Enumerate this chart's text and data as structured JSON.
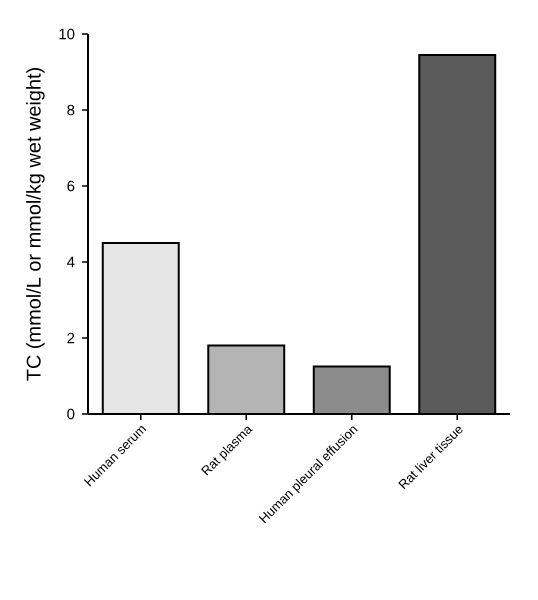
{
  "chart_data": {
    "type": "bar",
    "ylabel": "TC (mmol/L or mmol/kg wet weight)",
    "categories": [
      "Human serum",
      "Rat plasma",
      "Human pleural effusion",
      "Rat liver tissue"
    ],
    "values": [
      4.5,
      1.8,
      1.25,
      9.45
    ],
    "color": "#000000",
    "colors": [
      "#e6e6e6",
      "#b4b4b4",
      "#8c8c8c",
      "#5a5a5a"
    ],
    "ylim": [
      0,
      10
    ],
    "yticks": [
      0,
      2,
      4,
      6,
      8,
      10
    ],
    "grid": false
  }
}
